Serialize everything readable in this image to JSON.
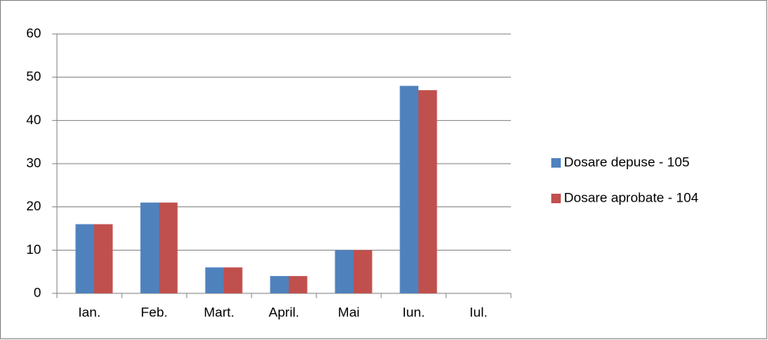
{
  "chart_data": {
    "type": "bar",
    "categories": [
      "Ian.",
      "Feb.",
      "Mart.",
      "April.",
      "Mai",
      "Iun.",
      "Iul."
    ],
    "series": [
      {
        "name": "Dosare depuse - 105",
        "color": "#4f81bd",
        "values": [
          16,
          21,
          6,
          4,
          10,
          48,
          null
        ]
      },
      {
        "name": "Dosare aprobate - 104",
        "color": "#c0504d",
        "values": [
          16,
          21,
          6,
          4,
          10,
          47,
          null
        ]
      }
    ],
    "ylim": [
      0,
      60
    ],
    "yticks": [
      0,
      10,
      20,
      30,
      40,
      50,
      60
    ],
    "grid": true,
    "legend": "right"
  }
}
